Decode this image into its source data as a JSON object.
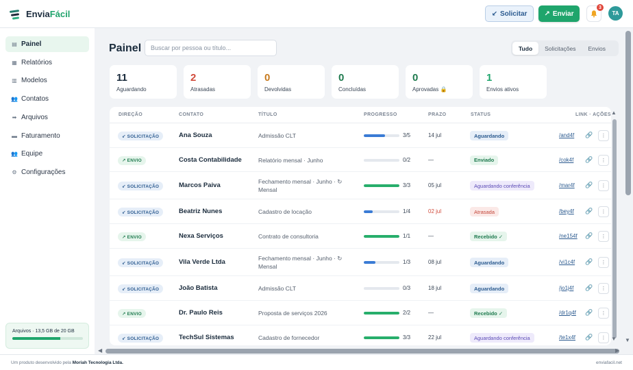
{
  "header": {
    "logo_main": "Envia",
    "logo_accent": "Fácil",
    "solicitar_label": "Solicitar",
    "solicitar_icon": "↙",
    "enviar_label": "Enviar",
    "enviar_icon": "↗",
    "notification_count": "3",
    "avatar_initials": "TA"
  },
  "sidebar": {
    "items": [
      {
        "label": "Painel",
        "icon": "▤"
      },
      {
        "label": "Relatórios",
        "icon": "▦"
      },
      {
        "label": "Modelos",
        "icon": "▥"
      },
      {
        "label": "Contatos",
        "icon": "👥"
      },
      {
        "label": "Arquivos",
        "icon": "➡"
      },
      {
        "label": "Faturamento",
        "icon": "▬"
      },
      {
        "label": "Equipe",
        "icon": "👥"
      },
      {
        "label": "Configurações",
        "icon": "⚙"
      }
    ],
    "storage_label": "Arquivos · 13,5 GB de 20 GB",
    "storage_fraction": 0.675
  },
  "main": {
    "title": "Painel",
    "search_placeholder": "Buscar por pessoa ou título...",
    "filters": [
      "Tudo",
      "Solicitações",
      "Envios"
    ],
    "active_filter": "Tudo",
    "stats": [
      {
        "value": "11",
        "label": "Aguardando",
        "color": "#1a2b3c"
      },
      {
        "value": "2",
        "label": "Atrasadas",
        "color": "#d14a3a"
      },
      {
        "value": "0",
        "label": "Devolvidas",
        "color": "#c77a1e"
      },
      {
        "value": "0",
        "label": "Concluídas",
        "color": "#1e7a4e"
      },
      {
        "value": "0",
        "label": "Aprovadas 🔒",
        "color": "#1e7a4e"
      },
      {
        "value": "1",
        "label": "Envios ativos",
        "color": "#1fa56c"
      }
    ]
  },
  "table": {
    "columns": [
      "DIREÇÃO",
      "CONTATO",
      "TÍTULO",
      "PROGRESSO",
      "PRAZO",
      "STATUS",
      "LINK · AÇÕES"
    ],
    "rows": [
      {
        "dir": "↙ SOLICITAÇÃO",
        "dir_type": "sol",
        "contato": "Ana Souza",
        "titulo": "Admissão CLT",
        "progress": "3/5",
        "fraction": 0.6,
        "prazo": "14 jul",
        "late": false,
        "status": "Aguardando",
        "status_type": "aguard",
        "link": "/and4f"
      },
      {
        "dir": "↗ ENVIO",
        "dir_type": "env",
        "contato": "Costa Contabilidade",
        "titulo": "Relatório mensal · Junho",
        "progress": "0/2",
        "fraction": 0,
        "prazo": "—",
        "late": false,
        "status": "Enviado",
        "status_type": "enviado",
        "link": "/cok4f"
      },
      {
        "dir": "↙ SOLICITAÇÃO",
        "dir_type": "sol",
        "contato": "Marcos Paiva",
        "titulo": "Fechamento mensal · Junho · ↻ Mensal",
        "progress": "3/3",
        "fraction": 1,
        "prazo": "05 jul",
        "late": false,
        "status": "Aguardando conferência",
        "status_type": "conf",
        "link": "/mar4f"
      },
      {
        "dir": "↙ SOLICITAÇÃO",
        "dir_type": "sol",
        "contato": "Beatriz Nunes",
        "titulo": "Cadastro de locação",
        "progress": "1/4",
        "fraction": 0.25,
        "prazo": "02 jul",
        "late": true,
        "status": "Atrasada",
        "status_type": "atras",
        "link": "/bey4f"
      },
      {
        "dir": "↗ ENVIO",
        "dir_type": "env",
        "contato": "Nexa Serviços",
        "titulo": "Contrato de consultoria",
        "progress": "1/1",
        "fraction": 1,
        "prazo": "—",
        "late": false,
        "status": "Recebido ✓",
        "status_type": "receb",
        "link": "/ne154f"
      },
      {
        "dir": "↙ SOLICITAÇÃO",
        "dir_type": "sol",
        "contato": "Vila Verde Ltda",
        "titulo": "Fechamento mensal · Junho · ↻ Mensal",
        "progress": "1/3",
        "fraction": 0.333,
        "prazo": "08 jul",
        "late": false,
        "status": "Aguardando",
        "status_type": "aguard",
        "link": "/vi1c4f"
      },
      {
        "dir": "↙ SOLICITAÇÃO",
        "dir_type": "sol",
        "contato": "João Batista",
        "titulo": "Admissão CLT",
        "progress": "0/3",
        "fraction": 0,
        "prazo": "18 jul",
        "late": false,
        "status": "Aguardando",
        "status_type": "aguard",
        "link": "/jo1j4f"
      },
      {
        "dir": "↗ ENVIO",
        "dir_type": "env",
        "contato": "Dr. Paulo Reis",
        "titulo": "Proposta de serviços 2026",
        "progress": "2/2",
        "fraction": 1,
        "prazo": "—",
        "late": false,
        "status": "Recebido ✓",
        "status_type": "receb",
        "link": "/dr1q4f"
      },
      {
        "dir": "↙ SOLICITAÇÃO",
        "dir_type": "sol",
        "contato": "TechSul Sistemas",
        "titulo": "Cadastro de fornecedor",
        "progress": "3/3",
        "fraction": 1,
        "prazo": "22 jul",
        "late": false,
        "status": "Aguardando conferência",
        "status_type": "conf",
        "link": "/te1x4f"
      }
    ]
  },
  "footer": {
    "left_prefix": "Um produto desenvolvido pela",
    "left_company": "Moriah Tecnologia Ltda.",
    "right": "enviafacil.net"
  },
  "colors": {
    "primary_green": "#1fa56c",
    "blue": "#2b5a8f",
    "late_red": "#d14a3a"
  }
}
